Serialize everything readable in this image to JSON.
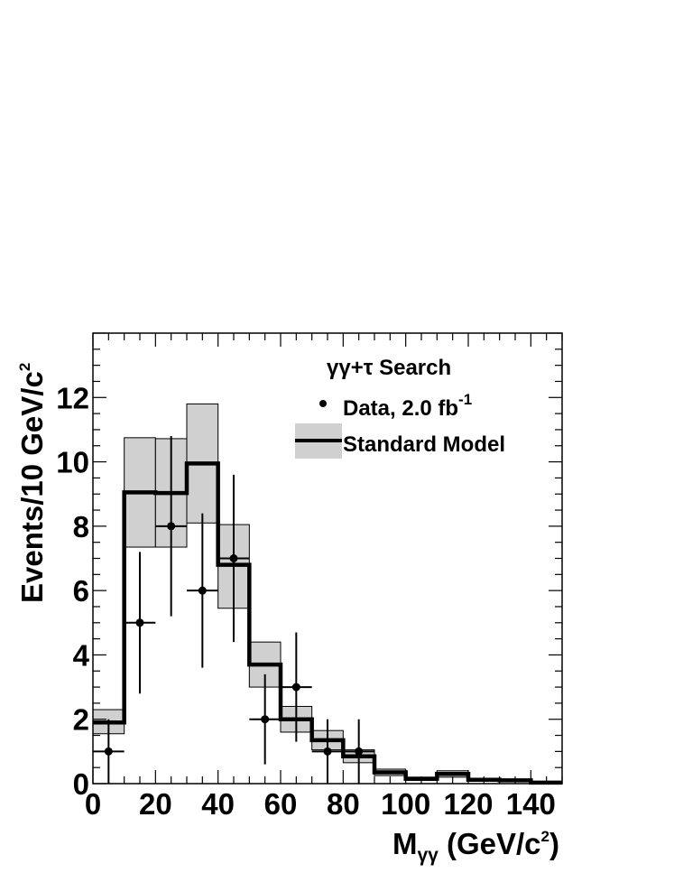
{
  "chart_data": {
    "type": "histogram",
    "bin_edges": [
      0,
      10,
      20,
      30,
      40,
      50,
      60,
      70,
      80,
      90,
      100,
      110,
      120,
      130,
      140,
      150
    ],
    "xlim": [
      0,
      150
    ],
    "ylim": [
      0,
      14
    ],
    "x_ticks": [
      0,
      20,
      40,
      60,
      80,
      100,
      120,
      140
    ],
    "y_ticks": [
      0,
      2,
      4,
      6,
      8,
      10,
      12
    ],
    "x_tick_labels": [
      "0",
      "20",
      "40",
      "60",
      "80",
      "100",
      "120",
      "140"
    ],
    "y_tick_labels": [
      "0",
      "2",
      "4",
      "6",
      "8",
      "10",
      "12"
    ],
    "xlabel": {
      "main": "M",
      "sub": "γγ",
      "rest": " (GeV/c",
      "sup": "2",
      "close": ")"
    },
    "ylabel": {
      "main": "Events/10 GeV/c",
      "sup": "2"
    },
    "grid": false,
    "legend": {
      "placement": "top-right",
      "title": "γγ+τ Search",
      "data_label": "Data, 2.0 fb",
      "data_label_sup": "-1",
      "model_label": "Standard Model"
    },
    "standard_model": {
      "values": [
        1.9,
        9.05,
        9.03,
        9.95,
        6.8,
        3.7,
        2.0,
        1.35,
        0.85,
        0.35,
        0.15,
        0.3,
        0.12,
        0.1,
        0.03
      ],
      "band_low": [
        1.55,
        7.35,
        7.35,
        8.1,
        5.45,
        3.0,
        1.6,
        1.05,
        0.65,
        0.25,
        0.1,
        0.2,
        0.08,
        0.06,
        0.02
      ],
      "band_high": [
        2.3,
        10.75,
        10.72,
        11.8,
        8.05,
        4.4,
        2.4,
        1.65,
        1.05,
        0.45,
        0.2,
        0.4,
        0.16,
        0.13,
        0.05
      ],
      "line_color": "#000000",
      "band_color": "#d0d0d0"
    },
    "data_points": {
      "x": [
        5,
        15,
        25,
        35,
        45,
        55,
        65,
        75,
        85
      ],
      "y": [
        1,
        5,
        8,
        6,
        7,
        2,
        3,
        1,
        1
      ],
      "y_err_low": [
        1,
        2.2,
        2.8,
        2.4,
        2.6,
        1.4,
        1.7,
        1,
        1
      ],
      "y_err_high": [
        1,
        2.2,
        2.8,
        2.4,
        2.6,
        1.4,
        1.7,
        1,
        1
      ],
      "x_err": 5,
      "color": "#000000"
    }
  }
}
